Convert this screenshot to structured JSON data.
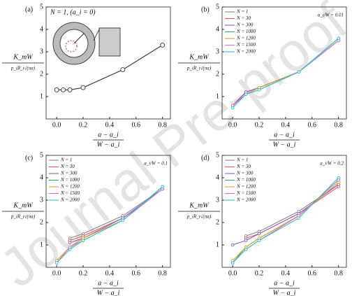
{
  "chart_data": [
    {
      "type": "line",
      "title": "(a)",
      "annotation": "N = 1, (a_i = 0)",
      "xlabel": {
        "num": "a − a_i",
        "den": "W − a_i"
      },
      "ylabel": {
        "num": "K_mW",
        "den": "p_iR_i√(πa)"
      },
      "x": [
        0.0,
        0.05,
        0.1,
        0.2,
        0.5,
        0.8
      ],
      "series": [
        {
          "name": null,
          "color": "#333333",
          "values": [
            1.3,
            1.3,
            1.3,
            1.4,
            2.2,
            3.3
          ]
        }
      ],
      "xlim": [
        -0.08,
        0.86
      ],
      "ylim": [
        0,
        5
      ],
      "xticks": [
        {
          "value": 0,
          "label": "0.0"
        },
        0.2,
        0.4,
        0.6,
        0.8
      ],
      "yticks": [
        1,
        2,
        3,
        4,
        5
      ],
      "inset": true
    },
    {
      "type": "line",
      "title": "(b)",
      "annotation": "a_i/W = 0.01",
      "xlabel": {
        "num": "a − a_i",
        "den": "W − a_i"
      },
      "ylabel": {
        "num": "K_mW",
        "den": "p_iR_i√(πa)"
      },
      "x": [
        0.0,
        0.1,
        0.2,
        0.5,
        0.8
      ],
      "series": [
        {
          "name": "N = 1",
          "color": "#888888",
          "values": [
            0.6,
            1.2,
            1.4,
            2.1,
            3.5
          ]
        },
        {
          "name": "N = 30",
          "color": "#e05a5a",
          "values": [
            0.6,
            1.2,
            1.4,
            2.1,
            3.5
          ]
        },
        {
          "name": "N = 300",
          "color": "#8a5fc0",
          "values": [
            0.6,
            1.2,
            1.4,
            2.1,
            3.5
          ]
        },
        {
          "name": "N = 1000",
          "color": "#3aa86a",
          "values": [
            0.6,
            1.1,
            1.4,
            2.1,
            3.6
          ]
        },
        {
          "name": "N = 1200",
          "color": "#e0a030",
          "values": [
            0.6,
            1.1,
            1.4,
            2.1,
            3.5
          ]
        },
        {
          "name": "N = 1500",
          "color": "#e070c0",
          "values": [
            0.6,
            1.1,
            1.3,
            2.1,
            3.5
          ]
        },
        {
          "name": "N = 2000",
          "color": "#30c0d0",
          "values": [
            0.5,
            1.1,
            1.3,
            2.1,
            3.6
          ]
        }
      ],
      "xlim": [
        -0.08,
        0.86
      ],
      "ylim": [
        0,
        5
      ],
      "xticks": [
        {
          "value": 0,
          "label": "0.0"
        },
        0.2,
        0.4,
        0.6,
        0.8
      ],
      "yticks": [
        1,
        2,
        3,
        4,
        5
      ]
    },
    {
      "type": "line",
      "title": "(c)",
      "annotation": "a_i/W = 0.1",
      "xlabel": {
        "num": "a − a_i",
        "den": "W − a_i"
      },
      "ylabel": {
        "num": "K_mW",
        "den": "p_iR_i√(πa)"
      },
      "x": [
        0.0,
        0.1,
        0.2,
        0.5,
        0.8
      ],
      "series": [
        {
          "name": "N = 1",
          "color": "#888888",
          "values": [
            null,
            1.3,
            1.5,
            2.3,
            3.5
          ]
        },
        {
          "name": "N = 30",
          "color": "#e05a5a",
          "values": [
            null,
            1.2,
            1.4,
            2.2,
            3.5
          ]
        },
        {
          "name": "N = 300",
          "color": "#8a5fc0",
          "values": [
            null,
            1.1,
            1.3,
            2.2,
            3.5
          ]
        },
        {
          "name": "N = 1000",
          "color": "#3aa86a",
          "values": [
            0.3,
            0.9,
            1.3,
            2.1,
            3.6
          ]
        },
        {
          "name": "N = 1200",
          "color": "#e0a030",
          "values": [
            0.3,
            0.9,
            1.3,
            2.1,
            3.5
          ]
        },
        {
          "name": "N = 1500",
          "color": "#e070c0",
          "values": [
            0.2,
            0.9,
            1.2,
            2.1,
            3.5
          ]
        },
        {
          "name": "N = 2000",
          "color": "#30c0d0",
          "values": [
            0.2,
            0.8,
            1.2,
            2.1,
            3.6
          ]
        }
      ],
      "xlim": [
        -0.08,
        0.86
      ],
      "ylim": [
        0,
        5
      ],
      "xticks": [
        {
          "value": 0,
          "label": "0.0"
        },
        0.2,
        0.4,
        0.6,
        0.8
      ],
      "yticks": [
        1,
        2,
        3,
        4,
        5
      ]
    },
    {
      "type": "line",
      "title": "(d)",
      "annotation": "a_i/W = 0.2",
      "xlabel": {
        "num": "a − a_i",
        "den": "W − a_i"
      },
      "ylabel": {
        "num": "K_mW",
        "den": "p_iR_i√(πa)"
      },
      "x": [
        0.0,
        0.1,
        0.2,
        0.5,
        0.8
      ],
      "series": [
        {
          "name": "N = 1",
          "color": "#888888",
          "values": [
            null,
            1.4,
            1.6,
            2.5,
            3.7
          ]
        },
        {
          "name": "N = 30",
          "color": "#e05a5a",
          "values": [
            null,
            1.3,
            1.5,
            2.4,
            3.6
          ]
        },
        {
          "name": "N = 300",
          "color": "#8a5fc0",
          "values": [
            1.0,
            1.2,
            1.5,
            2.4,
            3.7
          ]
        },
        {
          "name": "N = 1000",
          "color": "#3aa86a",
          "values": [
            0.2,
            0.9,
            1.3,
            2.3,
            3.9
          ]
        },
        {
          "name": "N = 1200",
          "color": "#e0a030",
          "values": [
            0.3,
            0.9,
            1.3,
            2.3,
            3.8
          ]
        },
        {
          "name": "N = 1500",
          "color": "#e070c0",
          "values": [
            0.2,
            0.8,
            1.2,
            2.3,
            3.9
          ]
        },
        {
          "name": "N = 2000",
          "color": "#30c0d0",
          "values": [
            0.2,
            0.8,
            1.2,
            2.2,
            4.0
          ]
        }
      ],
      "xlim": [
        -0.08,
        0.86
      ],
      "ylim": [
        0,
        5
      ],
      "xticks": [
        {
          "value": 0,
          "label": "0.0"
        },
        0.2,
        0.4,
        0.6,
        0.8
      ],
      "yticks": [
        1,
        2,
        3,
        4,
        5
      ]
    }
  ],
  "watermark": "Journal Pre-proof"
}
